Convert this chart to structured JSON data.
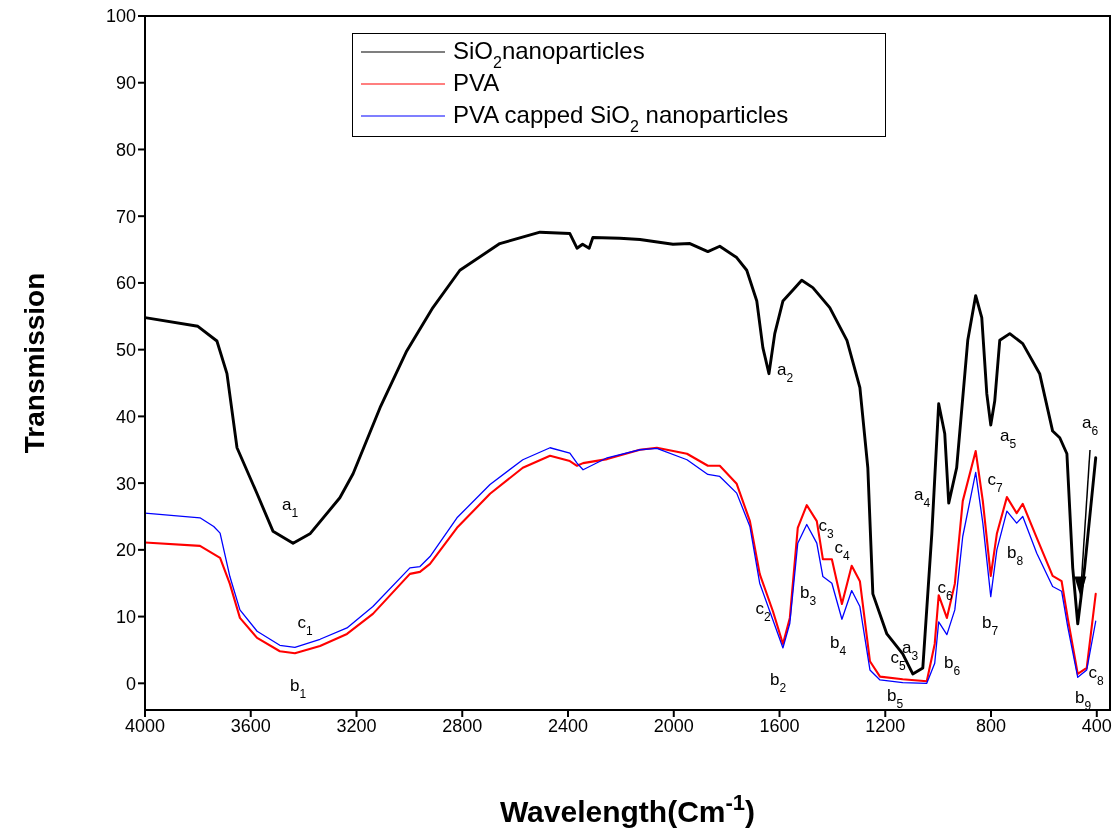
{
  "chart_data": {
    "type": "line",
    "xlabel": "Wavelength(Cm$^{-1}$)",
    "ylabel": "Transmission",
    "xlim": [
      4000,
      350
    ],
    "xticks": [
      4000,
      3600,
      3200,
      2800,
      2400,
      2000,
      1600,
      1200,
      800,
      400
    ],
    "ylim": [
      -4,
      100
    ],
    "yticks": [
      0,
      10,
      20,
      30,
      40,
      50,
      60,
      70,
      80,
      90,
      100
    ],
    "grid": false,
    "legend": "top",
    "marker": "none",
    "line_style": "solid",
    "series": [
      {
        "name": "SiO$_{2}$nanoparticles",
        "color": "#000000",
        "x": [
          4000,
          3800,
          3728,
          3690,
          3652,
          3576,
          3516,
          3440,
          3376,
          3263,
          3213,
          3111,
          3010,
          2911,
          2809,
          2658,
          2506,
          2393,
          2366,
          2345,
          2320,
          2306,
          2204,
          2128,
          2003,
          1939,
          1871,
          1826,
          1762,
          1724,
          1686,
          1663,
          1640,
          1618,
          1587,
          1550,
          1516,
          1474,
          1410,
          1345,
          1296,
          1266,
          1247,
          1194,
          1134,
          1096,
          1058,
          1024,
          998,
          975,
          960,
          930,
          888,
          858,
          835,
          816,
          801,
          786,
          767,
          729,
          680,
          616,
          567,
          540,
          513,
          491,
          472,
          446,
          404
        ],
        "values": [
          54.8,
          53.5,
          51.3,
          46.4,
          35.3,
          28.4,
          22.8,
          21,
          22.4,
          27.8,
          31.4,
          41.3,
          49.8,
          56.3,
          61.9,
          65.9,
          67.6,
          67.4,
          65.2,
          65.8,
          65.2,
          66.8,
          66.7,
          66.5,
          65.8,
          65.9,
          64.7,
          65.5,
          63.8,
          61.9,
          57.3,
          50.3,
          46.4,
          52.4,
          57.3,
          58.9,
          60.4,
          59.3,
          56.3,
          51.4,
          44.3,
          32.3,
          13.4,
          7.4,
          4.4,
          1.4,
          2.3,
          22.4,
          41.9,
          37.4,
          27,
          32.3,
          51.4,
          58.1,
          54.8,
          43.4,
          38.7,
          42.3,
          51.4,
          52.4,
          50.9,
          46.4,
          37.8,
          36.8,
          34.4,
          17.3,
          8.9,
          17.3,
          33.8
        ]
      },
      {
        "name": "PVA",
        "color": "#ff0000",
        "x": [
          4000,
          3792,
          3716,
          3679,
          3641,
          3576,
          3490,
          3433,
          3338,
          3236,
          3138,
          2998,
          2960,
          2922,
          2820,
          2695,
          2571,
          2468,
          2393,
          2366,
          2343,
          2252,
          2128,
          2064,
          1950,
          1871,
          1826,
          1762,
          1712,
          1675,
          1625,
          1587,
          1561,
          1531,
          1497,
          1459,
          1436,
          1402,
          1364,
          1327,
          1296,
          1258,
          1220,
          1134,
          1043,
          1013,
          998,
          967,
          937,
          907,
          858,
          831,
          801,
          778,
          740,
          703,
          680,
          627,
          567,
          533,
          510,
          472,
          438,
          404
        ],
        "values": [
          21.1,
          20.6,
          18.8,
          14.9,
          9.8,
          6.8,
          4.8,
          4.5,
          5.6,
          7.4,
          10.4,
          16.4,
          16.7,
          17.9,
          23.3,
          28.4,
          32.3,
          34.1,
          33.3,
          32.6,
          33,
          33.6,
          35,
          35.3,
          34.4,
          32.6,
          32.6,
          29.9,
          24.3,
          16.4,
          10.8,
          5.9,
          9.8,
          23.3,
          26.7,
          24.3,
          18.6,
          18.6,
          11.9,
          17.6,
          15.3,
          3.3,
          1,
          0.6,
          0.3,
          5.9,
          13.2,
          9.8,
          14.9,
          27.3,
          34.8,
          27.3,
          16.1,
          22.4,
          27.9,
          25.5,
          26.9,
          21.8,
          16.1,
          15.3,
          9.8,
          1.4,
          2.3,
          13.4
        ]
      },
      {
        "name": "PVA capped SiO$_{2}$ nanoparticles",
        "color": "#0000ff",
        "x": [
          4000,
          3792,
          3740,
          3716,
          3679,
          3641,
          3576,
          3490,
          3433,
          3338,
          3236,
          3138,
          2998,
          2960,
          2922,
          2820,
          2695,
          2571,
          2468,
          2393,
          2366,
          2343,
          2252,
          2128,
          2064,
          1950,
          1871,
          1826,
          1762,
          1712,
          1675,
          1625,
          1587,
          1561,
          1531,
          1497,
          1459,
          1436,
          1402,
          1364,
          1327,
          1296,
          1258,
          1220,
          1134,
          1043,
          1013,
          998,
          967,
          937,
          907,
          858,
          831,
          801,
          778,
          740,
          703,
          680,
          627,
          567,
          533,
          510,
          472,
          438,
          404
        ],
        "values": [
          25.5,
          24.8,
          23.5,
          22.5,
          16,
          11,
          7.8,
          5.7,
          5.4,
          6.6,
          8.3,
          11.5,
          17.3,
          17.5,
          19,
          24.8,
          29.8,
          33.5,
          35.3,
          34.5,
          33,
          32,
          33.8,
          35,
          35.2,
          33.5,
          31.3,
          31,
          28.5,
          23.5,
          15,
          9.5,
          5.3,
          9,
          21,
          23.8,
          21,
          16,
          15,
          9.6,
          13.9,
          11.5,
          2,
          0.5,
          0.1,
          0,
          3,
          9.2,
          7.3,
          11,
          22,
          31.6,
          24,
          13,
          20,
          25.8,
          24,
          25,
          19.5,
          14.5,
          13.8,
          8.5,
          0.9,
          2,
          9.3
        ]
      }
    ],
    "annotations": [
      "a$_{1}$",
      "a$_{2}$",
      "a$_{3}$",
      "a$_{4}$",
      "a$_{5}$",
      {
        "text": "a$_{6}$",
        "x": 462,
        "y": 13
      },
      "b$_{1}$",
      "b$_{2}$",
      "b$_{3}$",
      "b$_{4}$",
      "b$_{5}$",
      "b$_{6}$",
      "b$_{7}$",
      "b$_{8}$",
      "b$_{9}$",
      "c$_{1}$",
      "c$_{2}$",
      "c$_{3}$",
      "c$_{4}$",
      "c$_{5}$",
      "c$_{6}$",
      "c$_{7}$",
      "c$_{8}$"
    ]
  }
}
